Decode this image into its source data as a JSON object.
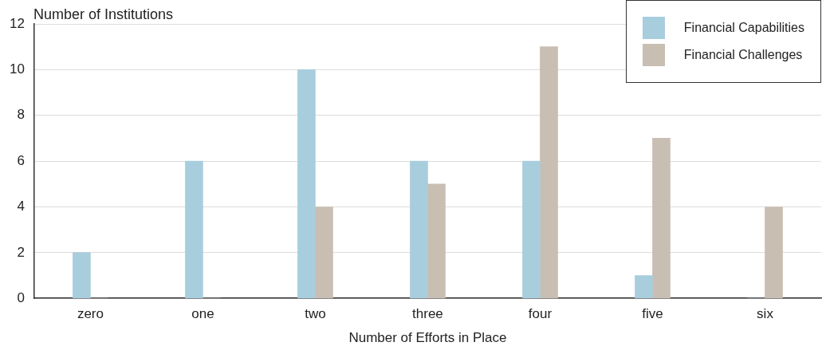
{
  "chart_data": {
    "type": "bar",
    "xlabel": "Number of Efforts in Place",
    "ylabel": "Number of Institutions",
    "categories": [
      "zero",
      "one",
      "two",
      "three",
      "four",
      "five",
      "six"
    ],
    "series": [
      {
        "name": "Financial Capabilities",
        "color": "#a8cddd",
        "values": [
          2,
          6,
          10,
          6,
          6,
          1,
          0
        ]
      },
      {
        "name": "Financial Challenges",
        "color": "#c8beb2",
        "values": [
          0,
          0,
          4,
          5,
          11,
          7,
          4
        ]
      }
    ],
    "ylim": [
      0,
      12
    ],
    "yticks": [
      0,
      2,
      4,
      6,
      8,
      10,
      12
    ],
    "grid": "y",
    "legend": "top right"
  }
}
